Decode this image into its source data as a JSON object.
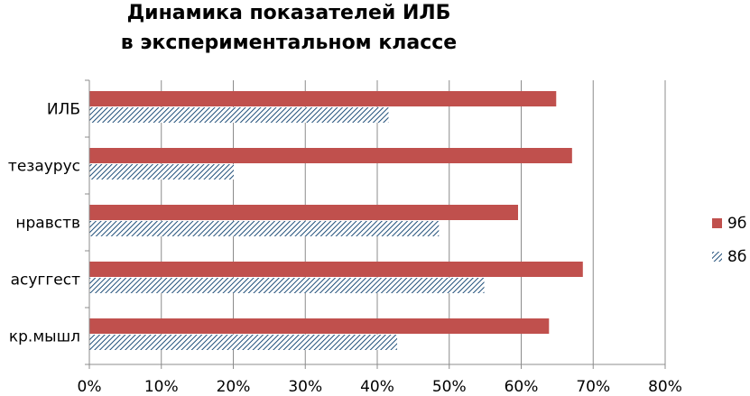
{
  "chart_data": {
    "type": "bar",
    "orientation": "horizontal",
    "title_lines": [
      "Динамика показателей ИЛБ",
      "в экспериментальном классе"
    ],
    "categories": [
      "ИЛБ",
      "тезаурус",
      "нравств",
      "асуггест",
      "кр.мышл"
    ],
    "series": [
      {
        "name": "9б",
        "values": [
          64.8,
          67.0,
          59.5,
          68.5,
          63.8
        ],
        "color": "#c0504d",
        "fill": "solid"
      },
      {
        "name": "8б",
        "values": [
          41.5,
          20.0,
          48.5,
          54.8,
          42.7
        ],
        "color": "#1f4e79",
        "fill": "diagonal-hatch"
      }
    ],
    "x_ticks": [
      "0%",
      "10%",
      "20%",
      "30%",
      "40%",
      "50%",
      "60%",
      "70%",
      "80%"
    ],
    "xlim": [
      0,
      80
    ],
    "grid": true,
    "legend_position": "right"
  }
}
